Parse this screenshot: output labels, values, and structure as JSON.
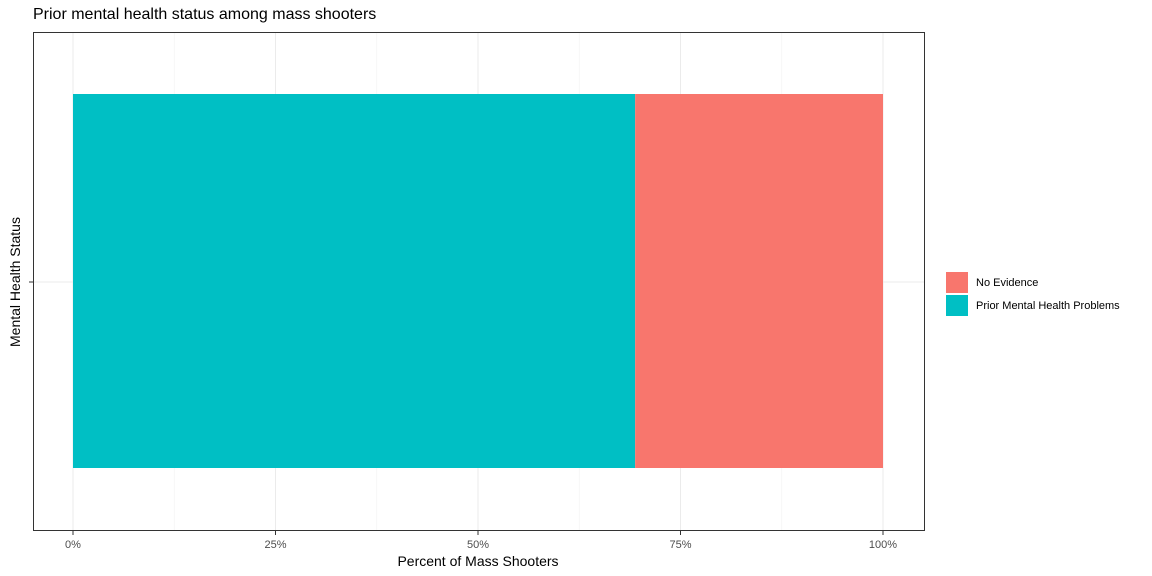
{
  "chart_data": {
    "type": "bar",
    "orientation": "horizontal",
    "stacked": true,
    "title": "Prior mental health status among mass shooters",
    "xlabel": "Percent of Mass Shooters",
    "ylabel": "Mental Health Status",
    "xlim": [
      0,
      1
    ],
    "x_ticks": [
      "0%",
      "25%",
      "50%",
      "75%",
      "100%"
    ],
    "grid": true,
    "legend_position": "right",
    "series": [
      {
        "name": "Prior Mental Health Problems",
        "value": 0.694,
        "color": "#00BFC4"
      },
      {
        "name": "No Evidence",
        "value": 0.306,
        "color": "#F8766D"
      }
    ],
    "legend": [
      {
        "label": "No Evidence",
        "color": "#F8766D"
      },
      {
        "label": "Prior Mental Health Problems",
        "color": "#00BFC4"
      }
    ]
  }
}
